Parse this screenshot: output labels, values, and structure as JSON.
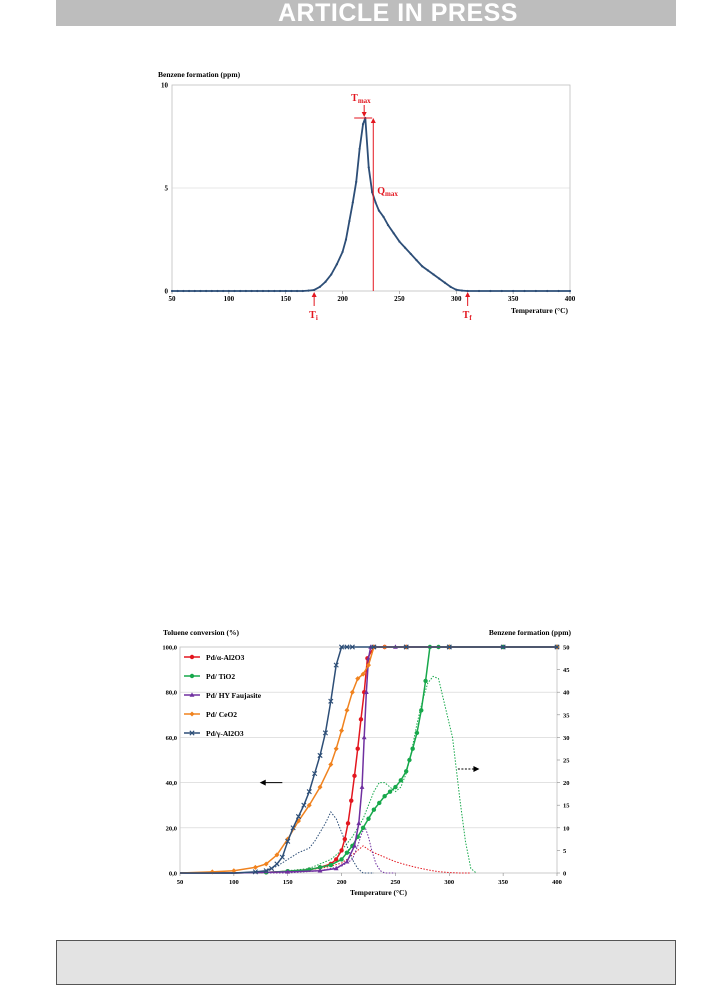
{
  "banner": {
    "text": "ARTICLE IN PRESS"
  },
  "chart_data": [
    {
      "type": "line",
      "ylabel": "Benzene formation (ppm)",
      "xlabel": "Temperature (°C)",
      "xlim": [
        50,
        400
      ],
      "ylim": [
        0,
        10
      ],
      "xticks": [
        "50",
        "100",
        "150",
        "200",
        "250",
        "300",
        "350",
        "400"
      ],
      "yticks": [
        "0",
        "5",
        "10"
      ],
      "grid": "horizontal",
      "colors": {
        "series": "#2d4e77",
        "annotation": "#e3161f"
      },
      "series": [
        {
          "x": [
            50,
            55,
            60,
            65,
            70,
            75,
            80,
            85,
            90,
            95,
            100,
            105,
            110,
            115,
            120,
            125,
            130,
            135,
            140,
            145,
            150,
            155,
            160,
            165,
            170,
            175,
            180,
            185,
            190,
            195,
            200,
            203,
            206,
            209,
            212,
            215,
            218,
            220,
            223,
            226,
            229,
            232,
            236,
            240,
            245,
            250,
            255,
            260,
            265,
            270,
            275,
            280,
            285,
            290,
            295,
            300,
            305,
            310,
            320,
            330,
            340,
            350,
            360,
            370,
            380,
            390,
            400
          ],
          "y": [
            0,
            0,
            0,
            0,
            0,
            0,
            0,
            0,
            0,
            0,
            0,
            0,
            0,
            0,
            0,
            0,
            0,
            0,
            0,
            0,
            0,
            0,
            0,
            0,
            0.02,
            0.05,
            0.2,
            0.45,
            0.8,
            1.3,
            1.9,
            2.5,
            3.4,
            4.3,
            5.3,
            6.9,
            8.1,
            8.4,
            6.0,
            4.8,
            4.3,
            3.9,
            3.6,
            3.2,
            2.8,
            2.4,
            2.1,
            1.8,
            1.5,
            1.2,
            1.0,
            0.8,
            0.6,
            0.4,
            0.2,
            0.06,
            0.02,
            0,
            0,
            0,
            0,
            0,
            0,
            0,
            0,
            0,
            0
          ]
        }
      ],
      "annotations": [
        {
          "label": "T",
          "sub": "max",
          "x": 219,
          "y": 8.4
        },
        {
          "label": "Q",
          "sub": "max",
          "x": 227,
          "y": 5.0
        },
        {
          "label": "T",
          "sub": "i",
          "x": 175,
          "y": 0
        },
        {
          "label": "T",
          "sub": "f",
          "x": 310,
          "y": 0
        }
      ]
    },
    {
      "type": "line",
      "ylabel": "Toluene conversion (%)",
      "y2label": "Benzene formation (ppm)",
      "xlabel": "Temperature (°C)",
      "xlim": [
        50,
        400
      ],
      "ylim": [
        0,
        100
      ],
      "y2lim": [
        0,
        50
      ],
      "xticks": [
        "50",
        "100",
        "150",
        "200",
        "250",
        "300",
        "350",
        "400"
      ],
      "yticks": [
        "0,0",
        "20,0",
        "40,0",
        "60,0",
        "80,0",
        "100,0"
      ],
      "y2ticks": [
        "0",
        "5",
        "10",
        "15",
        "20",
        "25",
        "30",
        "35",
        "40",
        "45",
        "50"
      ],
      "grid": "horizontal",
      "legend": "top-left",
      "series": [
        {
          "name": "Pd/α-Al2O3",
          "color": "#e3161f",
          "marker": "circle",
          "x": [
            50,
            100,
            130,
            150,
            170,
            180,
            190,
            195,
            200,
            203,
            206,
            209,
            212,
            215,
            218,
            221,
            224,
            230,
            240,
            260,
            300,
            350,
            400
          ],
          "y": [
            0,
            0,
            0.3,
            0.7,
            1.5,
            2.5,
            4,
            6,
            10,
            15,
            22,
            32,
            43,
            55,
            68,
            80,
            95,
            100,
            100,
            100,
            100,
            100,
            100
          ]
        },
        {
          "name": "Pd/ TiO2",
          "color": "#17a84b",
          "marker": "circle",
          "x": [
            50,
            100,
            130,
            150,
            170,
            180,
            190,
            200,
            205,
            210,
            215,
            220,
            225,
            230,
            235,
            240,
            245,
            250,
            255,
            260,
            263,
            266,
            270,
            274,
            278,
            282,
            290,
            300,
            350,
            400
          ],
          "y": [
            0,
            0,
            0.3,
            0.8,
            1.5,
            2.5,
            3.5,
            6,
            9,
            12,
            16,
            20,
            24,
            28,
            31,
            34,
            36,
            38,
            41,
            45,
            50,
            55,
            62,
            72,
            85,
            100,
            100,
            100,
            100,
            100
          ]
        },
        {
          "name": "Pd/ HY Faujasite",
          "color": "#7030a0",
          "marker": "triangle",
          "x": [
            50,
            100,
            150,
            180,
            195,
            205,
            212,
            216,
            219,
            221,
            223,
            225,
            227,
            230,
            250,
            300,
            400
          ],
          "y": [
            0,
            0,
            0.5,
            1,
            2,
            5,
            12,
            22,
            38,
            60,
            80,
            95,
            100,
            100,
            100,
            100,
            100
          ]
        },
        {
          "name": "Pd/ CeO2",
          "color": "#f0821e",
          "marker": "diamond",
          "x": [
            50,
            80,
            100,
            120,
            130,
            140,
            150,
            160,
            170,
            180,
            190,
            195,
            200,
            205,
            210,
            215,
            220,
            225,
            230,
            240,
            260,
            300,
            400
          ],
          "y": [
            0,
            0.5,
            1,
            2.5,
            4,
            8,
            15,
            23,
            30,
            38,
            48,
            55,
            63,
            72,
            80,
            86,
            88,
            92,
            100,
            100,
            100,
            100,
            100
          ]
        },
        {
          "name": "Pd/γ-Al2O3",
          "color": "#2d4e77",
          "marker": "cross",
          "x": [
            50,
            100,
            120,
            130,
            135,
            140,
            145,
            150,
            155,
            160,
            165,
            170,
            175,
            180,
            185,
            190,
            195,
            200,
            205,
            210,
            230,
            260,
            300,
            350,
            400
          ],
          "y": [
            0,
            0,
            0.5,
            1,
            2,
            4,
            7,
            14,
            20,
            25,
            30,
            36,
            44,
            52,
            62,
            76,
            92,
            100,
            100,
            100,
            100,
            100,
            100,
            100,
            100
          ]
        }
      ],
      "benzene_series": [
        {
          "color": "#e3161f",
          "x": [
            50,
            120,
            140,
            160,
            180,
            190,
            200,
            205,
            210,
            215,
            220,
            225,
            230,
            240,
            250,
            260,
            270,
            280,
            290,
            300,
            310,
            320
          ],
          "y": [
            0,
            0,
            0.2,
            0.5,
            1,
            1.5,
            2.2,
            3,
            4,
            5,
            6,
            5.2,
            4.5,
            3.5,
            2.5,
            1.8,
            1.2,
            0.7,
            0.3,
            0.1,
            0,
            0
          ]
        },
        {
          "color": "#17a84b",
          "x": [
            50,
            130,
            150,
            170,
            180,
            190,
            200,
            210,
            220,
            230,
            235,
            240,
            245,
            250,
            255,
            260,
            265,
            270,
            275,
            280,
            285,
            290,
            295,
            300,
            303,
            306,
            310,
            315,
            320,
            325
          ],
          "y": [
            0,
            0,
            0.5,
            1,
            2,
            3,
            5,
            8,
            12,
            18,
            20,
            20,
            19,
            18,
            19,
            22,
            27,
            33,
            38,
            42,
            43.5,
            43,
            38,
            33,
            30,
            24,
            16,
            7,
            1,
            0
          ]
        },
        {
          "color": "#7030a0",
          "x": [
            50,
            150,
            180,
            200,
            210,
            215,
            219,
            222,
            225,
            228,
            232,
            236,
            240,
            250
          ],
          "y": [
            0,
            0,
            0.5,
            1.5,
            3,
            6,
            9,
            10,
            8,
            5,
            2,
            0.5,
            0,
            0
          ]
        },
        {
          "color": "#2d4e77",
          "x": [
            50,
            120,
            130,
            140,
            150,
            160,
            165,
            170,
            175,
            180,
            185,
            190,
            195,
            200,
            205,
            210,
            215,
            220,
            230
          ],
          "y": [
            0,
            0,
            0.5,
            1.5,
            3,
            4.5,
            5,
            5.5,
            7,
            9,
            11,
            13.5,
            12,
            9,
            6,
            3,
            1,
            0,
            0
          ]
        }
      ]
    }
  ]
}
